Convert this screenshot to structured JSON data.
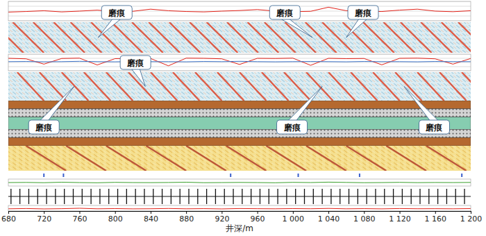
{
  "chart_data": [
    {
      "type": "line",
      "xlim": [
        680,
        1200
      ],
      "ylim": [
        0,
        100
      ],
      "yticks": [
        0,
        25,
        50,
        75,
        100
      ],
      "grid": true,
      "tick_labels": false,
      "x": [
        680,
        700,
        720,
        740,
        760,
        780,
        800,
        820,
        840,
        860,
        880,
        900,
        920,
        940,
        960,
        980,
        1000,
        1020,
        1040,
        1060,
        1080,
        1100,
        1120,
        1140,
        1160,
        1180,
        1200
      ],
      "series": [
        {
          "color": "#e2231a",
          "values": [
            45,
            48,
            52,
            46,
            50,
            55,
            47,
            49,
            60,
            52,
            48,
            46,
            50,
            53,
            58,
            50,
            47,
            49,
            70,
            52,
            50,
            48,
            55,
            60,
            50,
            47,
            52
          ]
        }
      ]
    },
    {
      "type": "image",
      "xlim": [
        680,
        1200
      ],
      "color": "#dcedf3",
      "series": [
        {
          "color": "#e0442a",
          "stripes": [
            [
              662,
              697
            ],
            [
              685,
              720
            ],
            [
              708,
              743
            ],
            [
              731,
              766
            ],
            [
              750,
              785
            ],
            [
              773,
              808
            ],
            [
              796,
              831
            ],
            [
              819,
              854
            ],
            [
              838,
              873
            ],
            [
              861,
              896
            ],
            [
              884,
              919
            ],
            [
              903,
              938
            ],
            [
              926,
              961
            ],
            [
              949,
              984
            ],
            [
              968,
              1003
            ],
            [
              991,
              1026
            ],
            [
              1014,
              1049
            ],
            [
              1033,
              1068
            ],
            [
              1056,
              1091
            ],
            [
              1079,
              1114
            ],
            [
              1102,
              1137
            ],
            [
              1121,
              1156
            ],
            [
              1144,
              1179
            ],
            [
              1167,
              1202
            ],
            [
              1186,
              1221
            ]
          ]
        }
      ],
      "annotations": [
        {
          "text": "磨痕",
          "x": 802,
          "target": 781,
          "side": "above"
        },
        {
          "text": "磨痕",
          "x": 991,
          "target": 1022,
          "side": "above"
        },
        {
          "text": "磨痕",
          "x": 1079,
          "target": 1060,
          "side": "above"
        }
      ]
    },
    {
      "type": "line",
      "xlim": [
        680,
        1200
      ],
      "ylim": [
        0,
        100
      ],
      "yticks": [
        0,
        25,
        50,
        75,
        100
      ],
      "grid": true,
      "tick_labels": false,
      "x": [
        680,
        700,
        720,
        740,
        760,
        780,
        800,
        820,
        840,
        860,
        880,
        900,
        920,
        940,
        960,
        980,
        1000,
        1020,
        1040,
        1060,
        1080,
        1100,
        1120,
        1140,
        1160,
        1180,
        1200
      ],
      "series": [
        {
          "color": "#e2231a",
          "values": [
            75,
            72,
            40,
            74,
            76,
            35,
            73,
            75,
            74,
            30,
            76,
            75,
            72,
            38,
            75,
            74,
            76,
            33,
            75,
            73,
            74,
            36,
            75,
            76,
            72,
            40,
            74
          ]
        },
        {
          "color": "#3a6fc4",
          "values": [
            55,
            56,
            54,
            55,
            57,
            55,
            54,
            56,
            55,
            55,
            54,
            56,
            55,
            57,
            55,
            54,
            55,
            56,
            55,
            54,
            56,
            55,
            55,
            54,
            56,
            55,
            55
          ]
        }
      ]
    },
    {
      "type": "image",
      "xlim": [
        680,
        1200
      ],
      "color": "#dcedf3",
      "series": [
        {
          "color": "#e0442a",
          "stripes": [
            [
              690,
              720
            ],
            [
              715,
              745
            ],
            [
              740,
              770
            ],
            [
              765,
              795
            ],
            [
              790,
              820
            ],
            [
              815,
              845
            ],
            [
              840,
              870
            ],
            [
              865,
              895
            ],
            [
              890,
              920
            ],
            [
              915,
              945
            ],
            [
              940,
              970
            ],
            [
              965,
              995
            ],
            [
              990,
              1020
            ],
            [
              1015,
              1045
            ],
            [
              1040,
              1070
            ],
            [
              1065,
              1095
            ],
            [
              1090,
              1120
            ],
            [
              1115,
              1145
            ],
            [
              1140,
              1170
            ],
            [
              1165,
              1195
            ],
            [
              1190,
              1220
            ]
          ]
        }
      ],
      "annotations": [
        {
          "text": "磨痕",
          "x": 823,
          "target": 834,
          "side": "above"
        },
        {
          "text": "磨痕",
          "x": 720,
          "target": 754,
          "side": "below"
        },
        {
          "text": "磨痕",
          "x": 999,
          "target": 1033,
          "side": "below"
        },
        {
          "text": "磨痕",
          "x": 1159,
          "target": 1125,
          "side": "below"
        }
      ]
    },
    {
      "type": "casing",
      "xlim": [
        680,
        1200
      ],
      "series": [
        {
          "type": "band",
          "color": "#b5692f"
        },
        {
          "type": "hatch",
          "color": "#d4d4d4"
        },
        {
          "type": "band",
          "color": "#86cdb0"
        },
        {
          "type": "hatch",
          "color": "#d4d4d4"
        },
        {
          "type": "band",
          "color": "#b5692f"
        }
      ]
    },
    {
      "type": "image",
      "xlim": [
        680,
        1200
      ],
      "color": "#f5df8e",
      "series": [
        {
          "color": "#b5402a",
          "stripes": [
            [
              700,
              745
            ],
            [
              745,
              790
            ],
            [
              790,
              835
            ],
            [
              835,
              880
            ],
            [
              880,
              925
            ],
            [
              925,
              970
            ],
            [
              970,
              1015
            ],
            [
              1015,
              1060
            ],
            [
              1060,
              1105
            ],
            [
              1105,
              1150
            ],
            [
              1150,
              1195
            ]
          ]
        }
      ]
    },
    {
      "type": "rug",
      "xlim": [
        680,
        1200
      ],
      "color": "#3a5fcd",
      "x": [
        720,
        742,
        930,
        1006,
        1075,
        1190
      ]
    },
    {
      "type": "line",
      "xlim": [
        680,
        1200
      ],
      "ylim": [
        0,
        100
      ],
      "tick_labels": false,
      "x": [
        680,
        700,
        720,
        740,
        760,
        780,
        800,
        820,
        840,
        860,
        880,
        900,
        920,
        940,
        960,
        980,
        1000,
        1020,
        1040,
        1060,
        1080,
        1100,
        1120,
        1140,
        1160,
        1180,
        1200
      ],
      "series": [
        {
          "color": "#3aa02c",
          "values": [
            50,
            52,
            48,
            55,
            50,
            47,
            53,
            50,
            49,
            51,
            55,
            48,
            50,
            52,
            50,
            47,
            53,
            50,
            56,
            52,
            48,
            50,
            53,
            49,
            51,
            50,
            52
          ]
        }
      ]
    },
    {
      "type": "spike",
      "xlim": [
        680,
        1200
      ],
      "color": "#111111",
      "x": [
        683,
        693,
        703,
        713,
        723,
        733,
        743,
        753,
        763,
        773,
        783,
        793,
        803,
        813,
        823,
        833,
        843,
        853,
        863,
        873,
        883,
        893,
        903,
        913,
        923,
        933,
        943,
        953,
        963,
        973,
        983,
        993,
        1003,
        1013,
        1023,
        1033,
        1043,
        1053,
        1063,
        1073,
        1083,
        1093,
        1103,
        1113,
        1123,
        1133,
        1143,
        1153,
        1163,
        1173,
        1183,
        1193
      ]
    },
    {
      "type": "line",
      "xlim": [
        680,
        1200
      ],
      "ylim": [
        0,
        100
      ],
      "tick_labels": "x",
      "xlabel": "井深/m",
      "xticks": [
        680,
        720,
        760,
        800,
        840,
        880,
        920,
        960,
        {
          "value": 1000,
          "label": "1 000"
        },
        {
          "value": 1040,
          "label": "1 040"
        },
        {
          "value": 1080,
          "label": "1 080"
        },
        {
          "value": 1120,
          "label": "1 120"
        },
        {
          "value": 1160,
          "label": "1 160"
        },
        {
          "value": 1200,
          "label": "1 200"
        }
      ],
      "x": [
        680,
        700,
        720,
        740,
        760,
        780,
        800,
        820,
        840,
        860,
        880,
        900,
        920,
        940,
        960,
        980,
        1000,
        1020,
        1040,
        1060,
        1080,
        1100,
        1120,
        1140,
        1160,
        1180,
        1200
      ],
      "series": [
        {
          "color": "#e2231a",
          "values": [
            40,
            45,
            38,
            42,
            50,
            40,
            44,
            39,
            41,
            46,
            40,
            43,
            38,
            45,
            42,
            40,
            44,
            41,
            47,
            40,
            43,
            39,
            45,
            41,
            42,
            40,
            44
          ]
        }
      ]
    }
  ]
}
